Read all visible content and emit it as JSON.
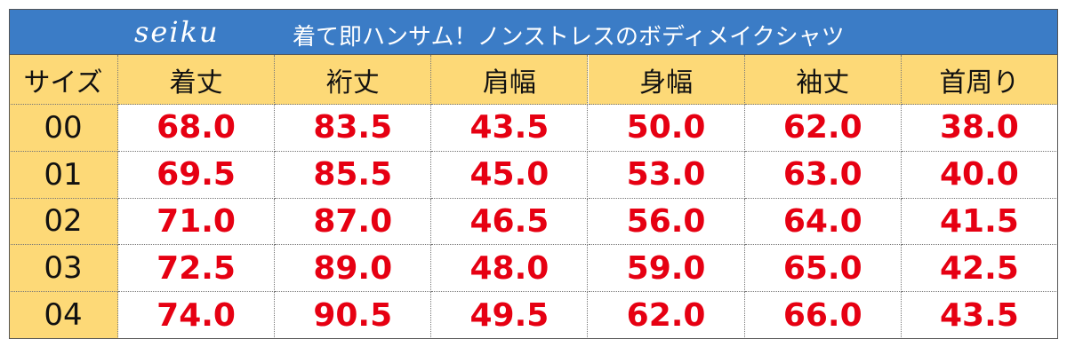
{
  "header": {
    "logo": "seiku",
    "title": "着て即ハンサム！ノンストレスのボディメイクシャツ"
  },
  "table": {
    "columns": [
      "サイズ",
      "着丈",
      "裄丈",
      "肩幅",
      "身幅",
      "袖丈",
      "首周り"
    ],
    "rows": [
      [
        "00",
        "68.0",
        "83.5",
        "43.5",
        "50.0",
        "62.0",
        "38.0"
      ],
      [
        "01",
        "69.5",
        "85.5",
        "45.0",
        "53.0",
        "63.0",
        "40.0"
      ],
      [
        "02",
        "71.0",
        "87.0",
        "46.5",
        "56.0",
        "64.0",
        "41.5"
      ],
      [
        "03",
        "72.5",
        "89.0",
        "48.0",
        "59.0",
        "65.0",
        "42.5"
      ],
      [
        "04",
        "74.0",
        "90.5",
        "49.5",
        "62.0",
        "66.0",
        "43.5"
      ]
    ]
  }
}
